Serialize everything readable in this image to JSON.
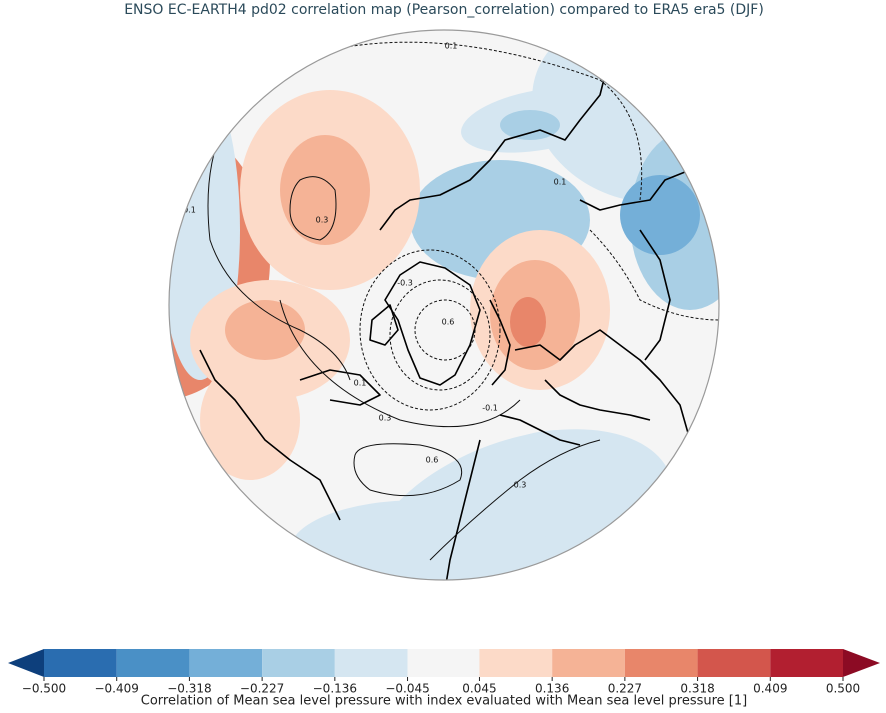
{
  "map": {
    "title": "ENSO EC-EARTH4 pd02 correlation map (Pearson_correlation) compared to ERA5 era5 (DJF)",
    "contour_labels": [
      0.1,
      0.1,
      -0.1,
      0.3,
      -0.3,
      0.6,
      0.1,
      0.3,
      -0.1,
      0.6,
      0.3
    ],
    "colorbar": {
      "label": "Correlation of Mean sea level pressure with index evaluated with Mean sea level pressure [1]",
      "ticks": [
        {
          "value": -0.5,
          "label": "−0.500"
        },
        {
          "value": -0.409,
          "label": "−0.409"
        },
        {
          "value": -0.318,
          "label": "−0.318"
        },
        {
          "value": -0.227,
          "label": "−0.227"
        },
        {
          "value": -0.136,
          "label": "−0.136"
        },
        {
          "value": -0.045,
          "label": "−0.045"
        },
        {
          "value": 0.045,
          "label": "0.045"
        },
        {
          "value": 0.136,
          "label": "0.136"
        },
        {
          "value": 0.227,
          "label": "0.227"
        },
        {
          "value": 0.318,
          "label": "0.318"
        },
        {
          "value": 0.409,
          "label": "0.409"
        },
        {
          "value": 0.5,
          "label": "0.500"
        }
      ],
      "colors": [
        "#2a6db0",
        "#4a90c6",
        "#74afd8",
        "#a9cfe5",
        "#d5e6f1",
        "#f5f5f5",
        "#fcdac8",
        "#f5b396",
        "#e8866a",
        "#d3564c",
        "#b21f30"
      ],
      "under_color": "#0d3f7c",
      "over_color": "#8c0b24"
    }
  }
}
